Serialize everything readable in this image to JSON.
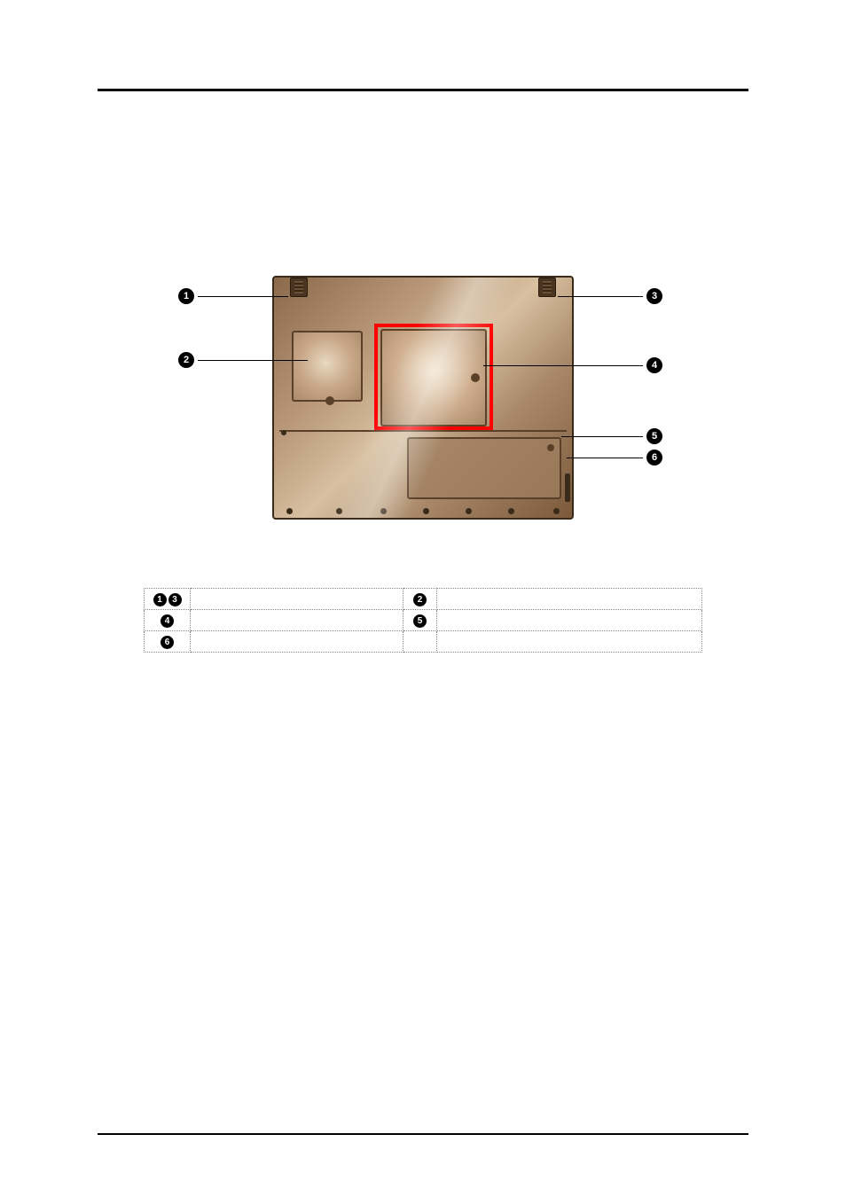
{
  "diagram": {
    "colors": {
      "case_gradient": [
        "#8a6a4a",
        "#b89878",
        "#d8c0a0",
        "#a88868",
        "#7a5a3a"
      ],
      "border": "#3a2a18",
      "highlight_box": "#ff0000",
      "compartment_border": "#5a4028"
    },
    "highlight_target": 4
  },
  "callouts": {
    "c1": "1",
    "c2": "2",
    "c3": "3",
    "c4": "4",
    "c5": "5",
    "c6": "6"
  },
  "legend": {
    "rows": [
      {
        "left_nums": [
          "1",
          "3"
        ],
        "left_text": "",
        "right_nums": [
          "2"
        ],
        "right_text": ""
      },
      {
        "left_nums": [
          "4"
        ],
        "left_text": "",
        "right_nums": [
          "5"
        ],
        "right_text": ""
      },
      {
        "left_nums": [
          "6"
        ],
        "left_text": "",
        "right_nums": [],
        "right_text": ""
      }
    ]
  }
}
